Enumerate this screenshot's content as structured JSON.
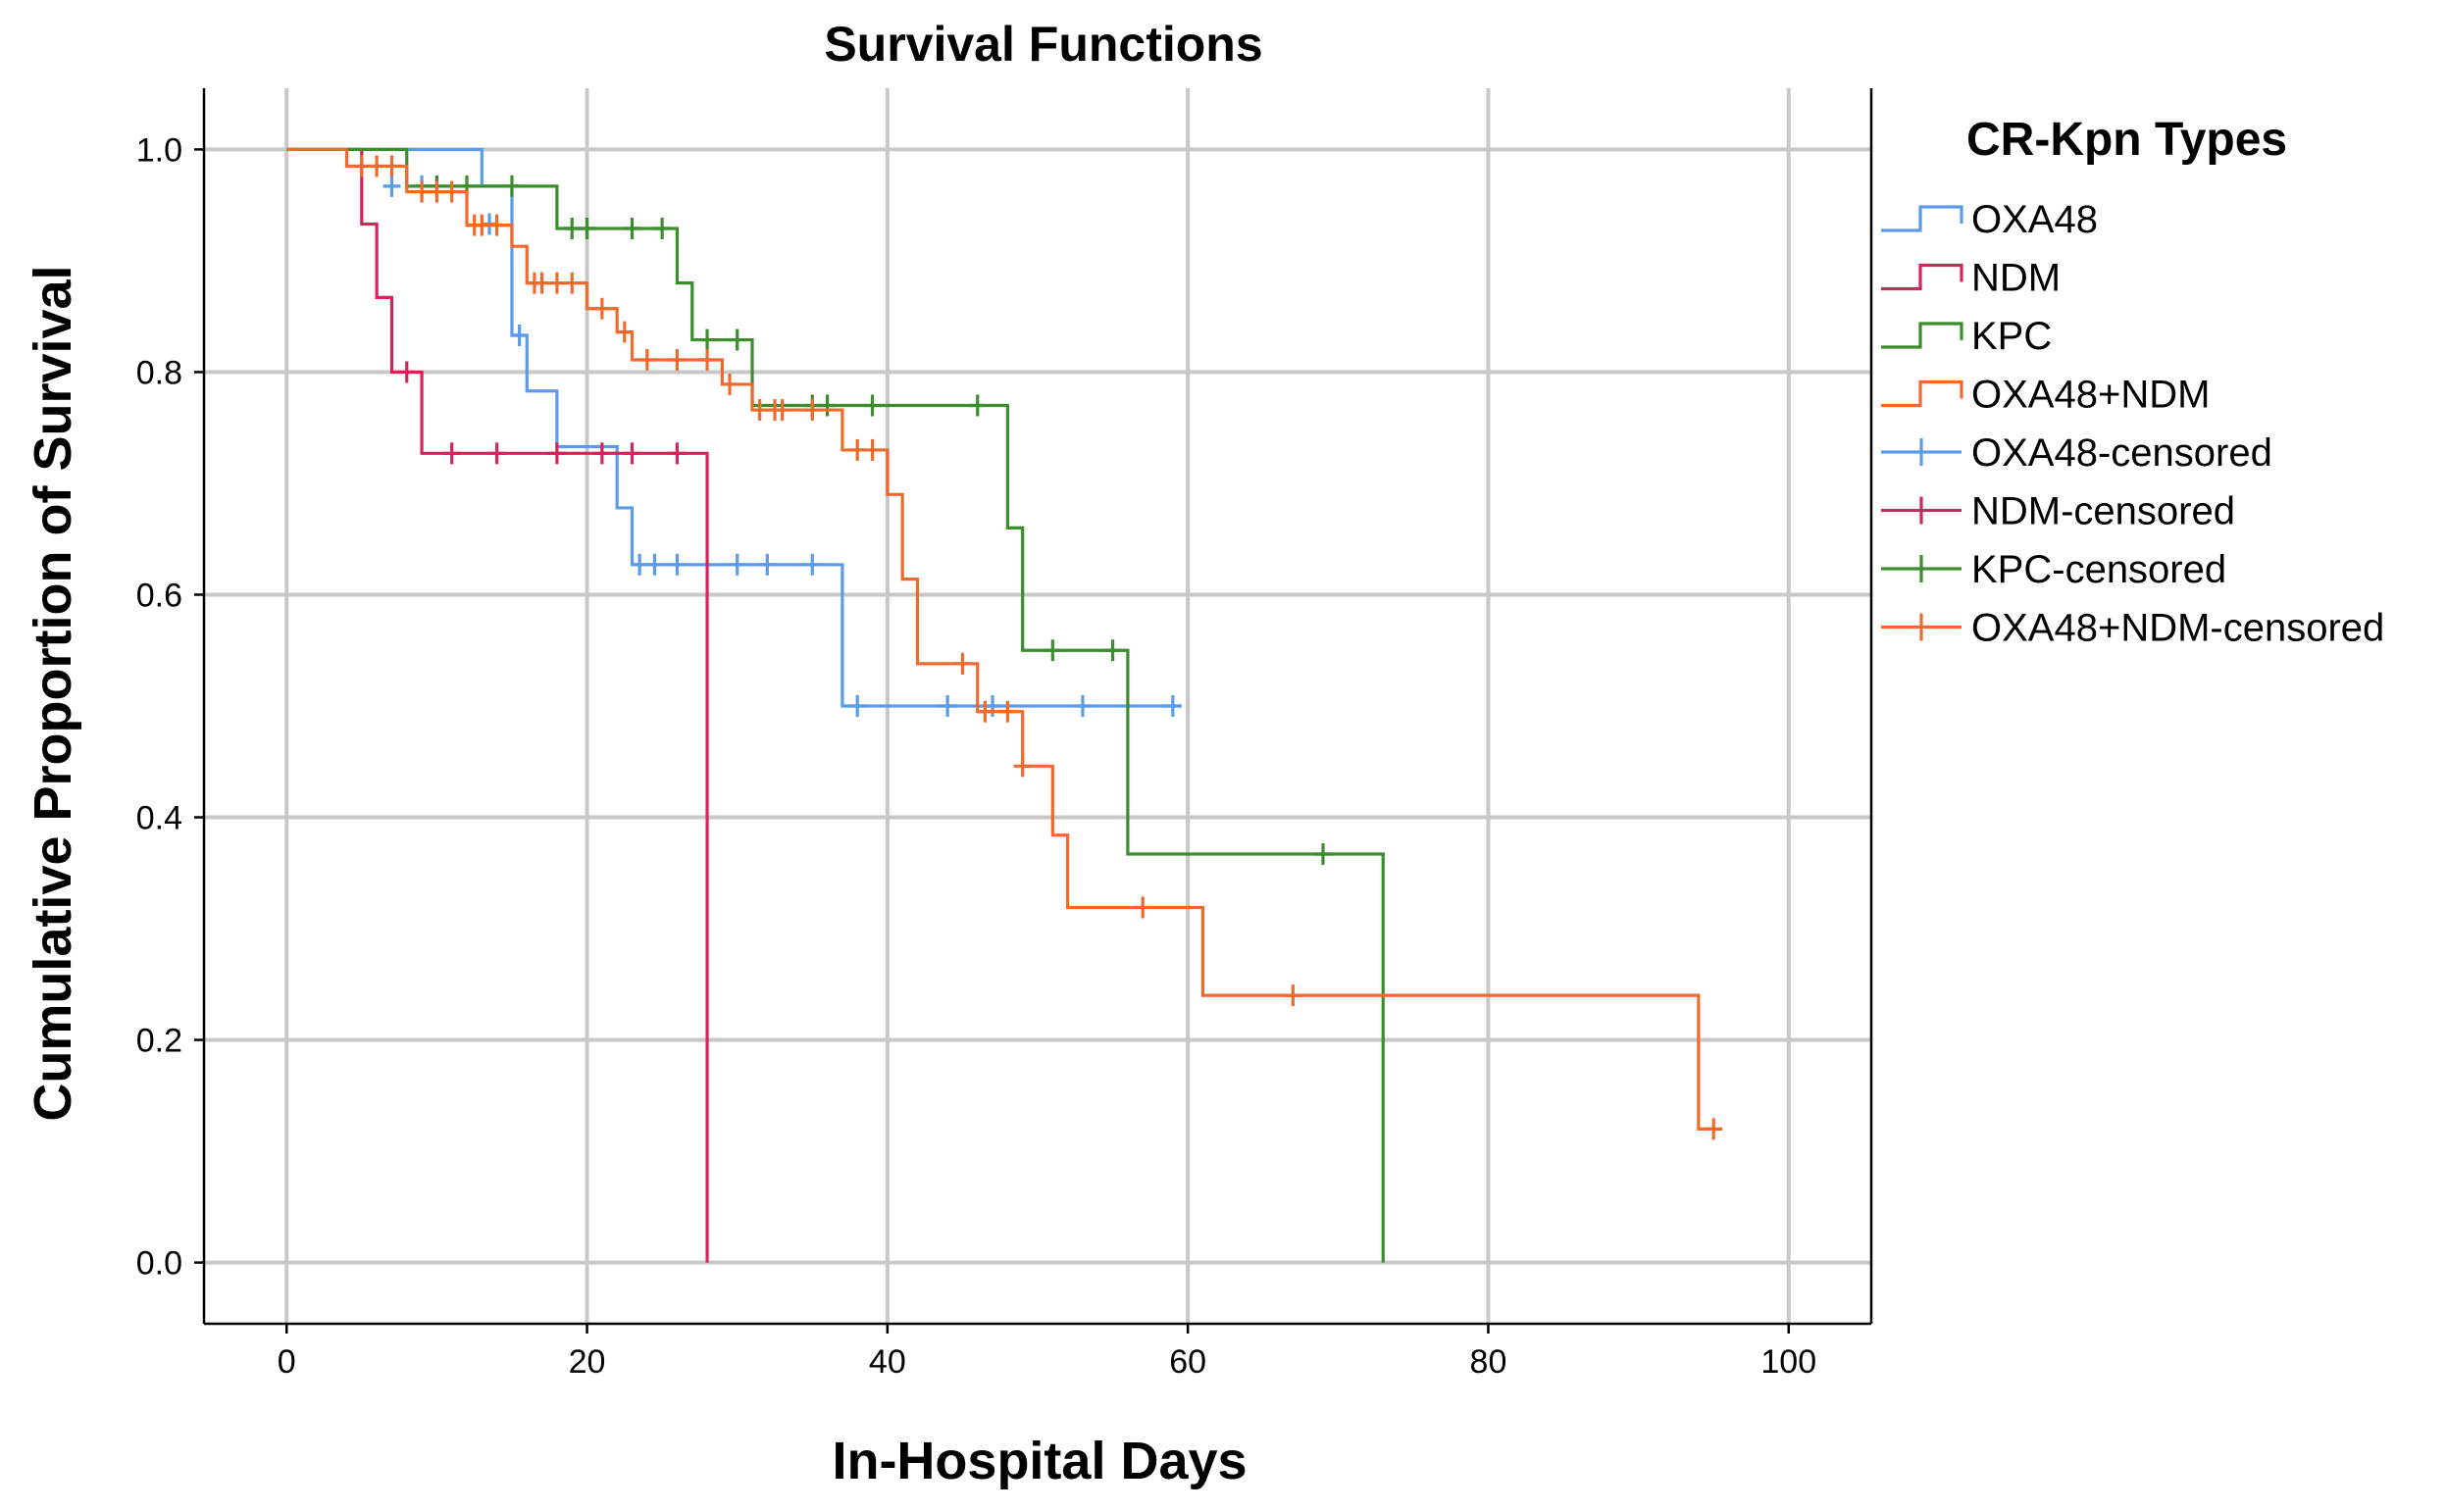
{
  "chart_data": {
    "type": "line",
    "subtype": "kaplan-meier-step",
    "title": "Survival Functions",
    "xlabel": "In-Hospital Days",
    "ylabel": "Cumulative Proportion of Survival",
    "xlim": [
      -5.5,
      105.5
    ],
    "ylim": [
      -0.055,
      1.055
    ],
    "xticks": [
      0,
      20,
      40,
      60,
      80,
      100
    ],
    "xtick_labels": [
      "0",
      "20",
      "40",
      "60",
      "80",
      "100"
    ],
    "yticks": [
      0.0,
      0.2,
      0.4,
      0.6,
      0.8,
      1.0
    ],
    "ytick_labels": [
      "0.0",
      "0.2",
      "0.4",
      "0.6",
      "0.8",
      "1.0"
    ],
    "grid": true,
    "legend": {
      "title": "CR-Kpn Types",
      "position": "right",
      "entries": [
        {
          "label": "OXA48",
          "kind": "step",
          "series": "OXA48"
        },
        {
          "label": "NDM",
          "kind": "step",
          "series": "NDM"
        },
        {
          "label": "KPC",
          "kind": "step",
          "series": "KPC"
        },
        {
          "label": "OXA48+NDM",
          "kind": "step",
          "series": "OXA48+NDM"
        },
        {
          "label": "OXA48-censored",
          "kind": "censor",
          "series": "OXA48"
        },
        {
          "label": "NDM-censored",
          "kind": "censor",
          "series": "NDM"
        },
        {
          "label": "KPC-censored",
          "kind": "censor",
          "series": "KPC"
        },
        {
          "label": "OXA48+NDM-censored",
          "kind": "censor",
          "series": "OXA48+NDM"
        }
      ]
    },
    "series": [
      {
        "name": "OXA48",
        "color": "#5b9bea",
        "x": [
          0,
          13,
          15,
          16,
          18,
          22,
          23,
          37,
          59.5
        ],
        "y": [
          1.0,
          0.967,
          0.833,
          0.783,
          0.733,
          0.678,
          0.627,
          0.5,
          0.5
        ],
        "censored": [
          [
            7,
            0.967
          ],
          [
            9,
            0.967
          ],
          [
            13.5,
            0.933
          ],
          [
            15.5,
            0.833
          ],
          [
            23.5,
            0.627
          ],
          [
            24.5,
            0.627
          ],
          [
            26,
            0.627
          ],
          [
            30,
            0.627
          ],
          [
            32,
            0.627
          ],
          [
            35,
            0.627
          ],
          [
            38,
            0.5
          ],
          [
            44,
            0.5
          ],
          [
            47,
            0.5
          ],
          [
            53,
            0.5
          ],
          [
            59,
            0.5
          ]
        ]
      },
      {
        "name": "NDM",
        "color": "#d5245b",
        "x": [
          0,
          5,
          6,
          7,
          9,
          28
        ],
        "y": [
          1.0,
          0.933,
          0.867,
          0.8,
          0.727,
          0.0
        ],
        "censored": [
          [
            8,
            0.8
          ],
          [
            11,
            0.727
          ],
          [
            14,
            0.727
          ],
          [
            18,
            0.727
          ],
          [
            21,
            0.727
          ],
          [
            23,
            0.727
          ],
          [
            26,
            0.727
          ]
        ]
      },
      {
        "name": "KPC",
        "color": "#3a8f2c",
        "x": [
          0,
          8,
          18,
          26,
          27,
          31,
          48,
          49,
          56,
          73
        ],
        "y": [
          1.0,
          0.967,
          0.929,
          0.88,
          0.829,
          0.77,
          0.66,
          0.55,
          0.367,
          0.0
        ],
        "censored": [
          [
            10,
            0.967
          ],
          [
            12,
            0.967
          ],
          [
            15,
            0.967
          ],
          [
            19,
            0.929
          ],
          [
            20,
            0.929
          ],
          [
            23,
            0.929
          ],
          [
            25,
            0.929
          ],
          [
            28,
            0.829
          ],
          [
            30,
            0.829
          ],
          [
            35,
            0.77
          ],
          [
            36,
            0.77
          ],
          [
            39,
            0.77
          ],
          [
            46,
            0.77
          ],
          [
            51,
            0.55
          ],
          [
            55,
            0.55
          ],
          [
            69,
            0.367
          ]
        ]
      },
      {
        "name": "OXA48+NDM",
        "color": "#f06a2e",
        "x": [
          0,
          4,
          8,
          12,
          15,
          16,
          20,
          22,
          23,
          29,
          31,
          37,
          40,
          41,
          42,
          46,
          49,
          51,
          52,
          61,
          94,
          95
        ],
        "y": [
          1.0,
          0.985,
          0.962,
          0.932,
          0.913,
          0.88,
          0.857,
          0.836,
          0.811,
          0.789,
          0.766,
          0.73,
          0.69,
          0.614,
          0.538,
          0.495,
          0.446,
          0.384,
          0.319,
          0.24,
          0.12,
          0.12
        ],
        "censored": [
          [
            5,
            0.985
          ],
          [
            6,
            0.985
          ],
          [
            7,
            0.985
          ],
          [
            9,
            0.962
          ],
          [
            10,
            0.962
          ],
          [
            11,
            0.962
          ],
          [
            12.5,
            0.932
          ],
          [
            13,
            0.932
          ],
          [
            14,
            0.932
          ],
          [
            16.5,
            0.88
          ],
          [
            17,
            0.88
          ],
          [
            18,
            0.88
          ],
          [
            19,
            0.88
          ],
          [
            21,
            0.857
          ],
          [
            22.5,
            0.836
          ],
          [
            24,
            0.811
          ],
          [
            26,
            0.811
          ],
          [
            28,
            0.811
          ],
          [
            29.5,
            0.789
          ],
          [
            31.5,
            0.766
          ],
          [
            32.5,
            0.766
          ],
          [
            33,
            0.766
          ],
          [
            35,
            0.766
          ],
          [
            38,
            0.73
          ],
          [
            39,
            0.73
          ],
          [
            45,
            0.538
          ],
          [
            46.5,
            0.495
          ],
          [
            48,
            0.495
          ],
          [
            49,
            0.446
          ],
          [
            57,
            0.319
          ],
          [
            67,
            0.24
          ],
          [
            95,
            0.12
          ]
        ]
      }
    ]
  }
}
